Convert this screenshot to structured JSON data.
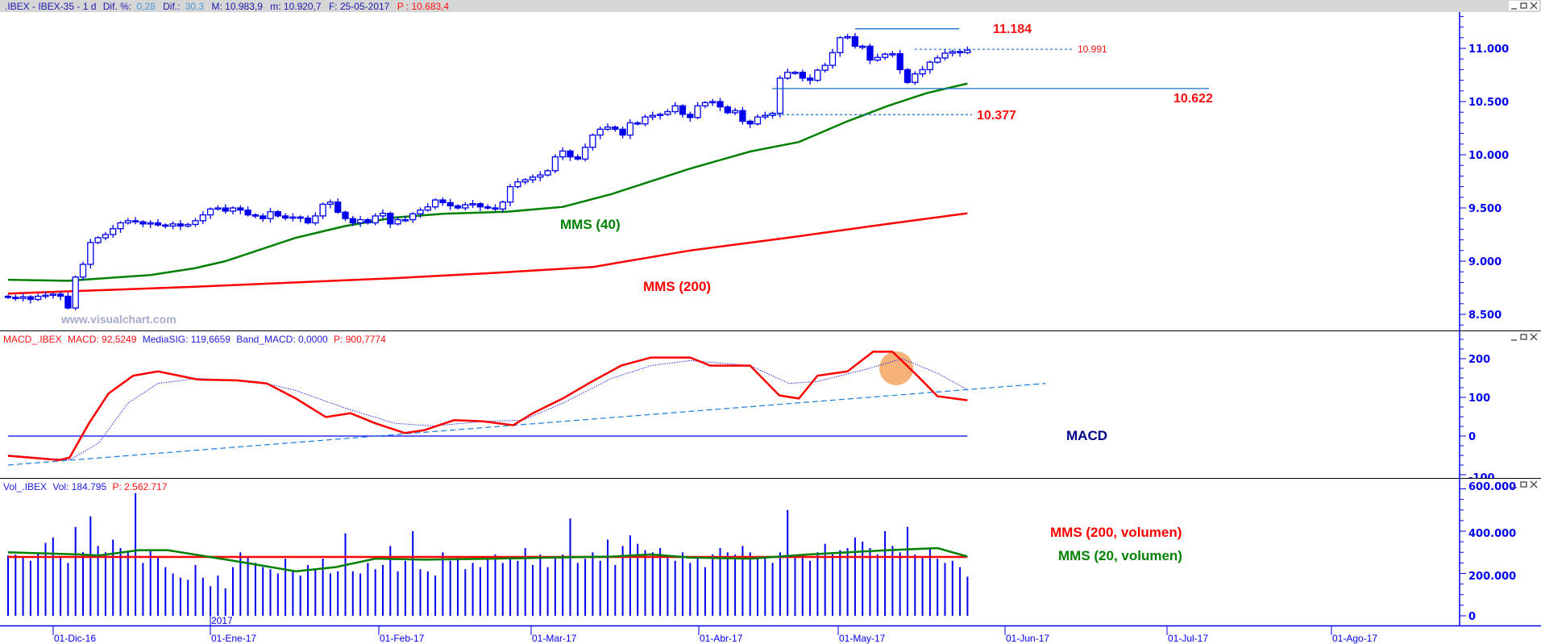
{
  "price_panel": {
    "header": {
      "symbol": ".IBEX - IBEX-35 -  1 d",
      "dif_pct_label": "Dif. %:",
      "dif_pct_value": "0,28",
      "dif_label": "Dif.:",
      "dif_value": "30,3",
      "max": "M: 10.983,9",
      "min": "m: 10.920,7",
      "date": "F: 25-05-2017",
      "p": "P : 10.683,4"
    },
    "axis_labels": [
      "11.000",
      "10.500",
      "10.000",
      "9.500",
      "9.000",
      "8.500"
    ],
    "levels": {
      "high": {
        "value": 11184,
        "label": "11.184"
      },
      "current": {
        "value": 10991,
        "label": "10.991"
      },
      "support": {
        "value": 10622,
        "label": "10.622"
      },
      "lower": {
        "value": 10377,
        "label": "10.377"
      }
    },
    "annotations": {
      "mms40": "MMS (40)",
      "mms200": "MMS (200)",
      "watermark": "www.visualchart.com"
    }
  },
  "macd_panel": {
    "header": {
      "name": "MACD_.IBEX",
      "macd": "MACD: 92,5249",
      "signal": "MediaSIG: 119,6659",
      "band": "Band_MACD: 0,0000",
      "p": "P: 900,7774"
    },
    "axis_labels": [
      "200",
      "100",
      "0",
      "-100"
    ],
    "annotation": "MACD"
  },
  "volume_panel": {
    "header": {
      "name": "Vol_.IBEX",
      "vol": "Vol: 184.795",
      "p": "P: 2.562.717"
    },
    "axis_labels": [
      "600.000",
      "400.000",
      "200.000",
      "0"
    ],
    "annotations": {
      "mms200": "MMS (200, volumen)",
      "mms20": "MMS (20, volumen)"
    }
  },
  "x_axis": {
    "year_label": "2017",
    "dates": [
      "01-Dic-16",
      "01-Ene-17",
      "01-Feb-17",
      "01-Mar-17",
      "01-Abr-17",
      "01-May-17",
      "01-Jun-17",
      "01-Jul-17",
      "01-Ago-17"
    ]
  },
  "colors": {
    "candle": "#0000ee",
    "mms40": "#008000",
    "mms200": "#ff0000",
    "level": "#1a6fd0",
    "text_red": "#ff1010",
    "macd_label": "#00008b",
    "highlight": "#f4a460"
  },
  "chart_data": [
    {
      "type": "candlestick",
      "title": ".IBEX - IBEX-35 - 1 d",
      "ylim": [
        8350,
        11400
      ],
      "closes": [
        8660,
        8650,
        8665,
        8640,
        8670,
        8680,
        8690,
        8670,
        8560,
        8850,
        8970,
        9175,
        9220,
        9250,
        9305,
        9360,
        9380,
        9370,
        9350,
        9360,
        9340,
        9330,
        9350,
        9330,
        9345,
        9380,
        9435,
        9490,
        9500,
        9470,
        9500,
        9480,
        9435,
        9425,
        9400,
        9465,
        9425,
        9405,
        9415,
        9405,
        9360,
        9425,
        9535,
        9555,
        9460,
        9400,
        9360,
        9390,
        9360,
        9425,
        9450,
        9350,
        9390,
        9390,
        9445,
        9480,
        9510,
        9575,
        9550,
        9520,
        9500,
        9530,
        9540,
        9510,
        9500,
        9490,
        9555,
        9700,
        9745,
        9765,
        9790,
        9810,
        9850,
        9980,
        10035,
        9980,
        9960,
        10070,
        10185,
        10240,
        10260,
        10240,
        10185,
        10300,
        10290,
        10355,
        10370,
        10380,
        10405,
        10460,
        10380,
        10350,
        10460,
        10490,
        10500,
        10450,
        10395,
        10415,
        10315,
        10290,
        10355,
        10370,
        10390,
        10720,
        10775,
        10775,
        10720,
        10700,
        10795,
        10840,
        10960,
        11100,
        11110,
        11020,
        11020,
        10890,
        10915,
        10945,
        10950,
        10800,
        10680,
        10760,
        10800,
        10870,
        10910,
        10955,
        10970,
        10960,
        10983
      ],
      "mms40": [
        [
          0,
          8825
        ],
        [
          8,
          8815
        ],
        [
          12,
          8835
        ],
        [
          19,
          8870
        ],
        [
          25,
          8935
        ],
        [
          29,
          9000
        ],
        [
          38.4,
          9220
        ],
        [
          45,
          9330
        ],
        [
          51.6,
          9410
        ],
        [
          58,
          9445
        ],
        [
          66.7,
          9465
        ],
        [
          74,
          9510
        ],
        [
          80.5,
          9630
        ],
        [
          91,
          9870
        ],
        [
          99,
          10030
        ],
        [
          105.5,
          10120
        ],
        [
          112,
          10315
        ],
        [
          117.4,
          10460
        ],
        [
          122.6,
          10580
        ],
        [
          128,
          10670
        ]
      ],
      "mms200": [
        [
          0,
          8695
        ],
        [
          25,
          8760
        ],
        [
          51.6,
          8840
        ],
        [
          65,
          8890
        ],
        [
          78,
          8945
        ],
        [
          91,
          9100
        ],
        [
          104,
          9220
        ],
        [
          117.4,
          9350
        ],
        [
          128,
          9450
        ]
      ]
    },
    {
      "type": "line",
      "title": "MACD_.IBEX",
      "ylim": [
        -110,
        230
      ],
      "macd": [
        [
          0,
          -51
        ],
        [
          6.8,
          -62
        ],
        [
          8.2,
          -56
        ],
        [
          10.8,
          33
        ],
        [
          13.4,
          110
        ],
        [
          16.7,
          156
        ],
        [
          20,
          167
        ],
        [
          25.3,
          146
        ],
        [
          30.5,
          144
        ],
        [
          34.5,
          136
        ],
        [
          38.4,
          97
        ],
        [
          42.4,
          49
        ],
        [
          45.7,
          59
        ],
        [
          49,
          33
        ],
        [
          52.9,
          8
        ],
        [
          55.5,
          15
        ],
        [
          59.5,
          41
        ],
        [
          63.4,
          38
        ],
        [
          67.4,
          28
        ],
        [
          70,
          59
        ],
        [
          74,
          97
        ],
        [
          77.9,
          141
        ],
        [
          81.8,
          182
        ],
        [
          85.8,
          203
        ],
        [
          91,
          203
        ],
        [
          93.7,
          182
        ],
        [
          99,
          182
        ],
        [
          102.9,
          105
        ],
        [
          105.5,
          97
        ],
        [
          108,
          156
        ],
        [
          112,
          167
        ],
        [
          115.4,
          218
        ],
        [
          118,
          218
        ],
        [
          121.3,
          156
        ],
        [
          124,
          103
        ],
        [
          128,
          92.5
        ]
      ],
      "signal": [
        [
          0,
          -49
        ],
        [
          8.2,
          -62
        ],
        [
          12.1,
          -18
        ],
        [
          16,
          85
        ],
        [
          20,
          136
        ],
        [
          25.3,
          149
        ],
        [
          33.2,
          141
        ],
        [
          38.4,
          118
        ],
        [
          45,
          72
        ],
        [
          51.6,
          33
        ],
        [
          56.8,
          26
        ],
        [
          63.4,
          38
        ],
        [
          68.7,
          41
        ],
        [
          74,
          85
        ],
        [
          80.5,
          149
        ],
        [
          85.8,
          182
        ],
        [
          91,
          195
        ],
        [
          99,
          182
        ],
        [
          104.2,
          136
        ],
        [
          108,
          141
        ],
        [
          114.7,
          174
        ],
        [
          119.3,
          200
        ],
        [
          124,
          162
        ],
        [
          128,
          120
        ]
      ],
      "trendline": [
        [
          0,
          -75
        ],
        [
          138.4,
          136
        ]
      ],
      "band": 0,
      "highlight_index": 118.5,
      "highlight_value": 175
    },
    {
      "type": "bar",
      "title": "Vol_.IBEX",
      "ylim": [
        0,
        620000
      ],
      "unit": "thousands",
      "volumes": [
        285,
        290,
        275,
        260,
        300,
        345,
        370,
        280,
        250,
        420,
        300,
        470,
        330,
        300,
        360,
        320,
        300,
        580,
        250,
        310,
        280,
        230,
        200,
        180,
        170,
        240,
        180,
        140,
        190,
        130,
        230,
        300,
        280,
        250,
        230,
        220,
        200,
        270,
        210,
        190,
        240,
        220,
        270,
        200,
        210,
        390,
        210,
        200,
        250,
        220,
        240,
        330,
        210,
        260,
        400,
        220,
        210,
        190,
        300,
        260,
        280,
        220,
        250,
        230,
        270,
        290,
        250,
        270,
        260,
        320,
        240,
        290,
        230,
        270,
        290,
        460,
        250,
        270,
        300,
        260,
        360,
        240,
        330,
        380,
        340,
        310,
        300,
        320,
        280,
        260,
        300,
        250,
        270,
        230,
        290,
        320,
        300,
        290,
        330,
        300,
        280,
        270,
        250,
        300,
        500,
        280,
        290,
        260,
        300,
        340,
        290,
        310,
        320,
        370,
        350,
        320,
        290,
        400,
        330,
        300,
        420,
        290,
        280,
        320,
        270,
        250,
        260,
        230,
        185
      ],
      "mms200": [
        [
          0,
          278
        ],
        [
          128,
          278
        ]
      ],
      "mms20": [
        [
          0,
          300
        ],
        [
          9.5,
          290
        ],
        [
          12.1,
          285
        ],
        [
          17.4,
          310
        ],
        [
          21.3,
          310
        ],
        [
          26.6,
          280
        ],
        [
          31.8,
          250
        ],
        [
          38.4,
          210
        ],
        [
          43.7,
          230
        ],
        [
          49,
          270
        ],
        [
          55.5,
          265
        ],
        [
          64.7,
          270
        ],
        [
          72.6,
          275
        ],
        [
          80.5,
          280
        ],
        [
          85.8,
          290
        ],
        [
          91,
          275
        ],
        [
          99,
          270
        ],
        [
          106.8,
          290
        ],
        [
          112,
          300
        ],
        [
          117.4,
          310
        ],
        [
          124,
          320
        ],
        [
          128,
          280
        ]
      ]
    }
  ]
}
